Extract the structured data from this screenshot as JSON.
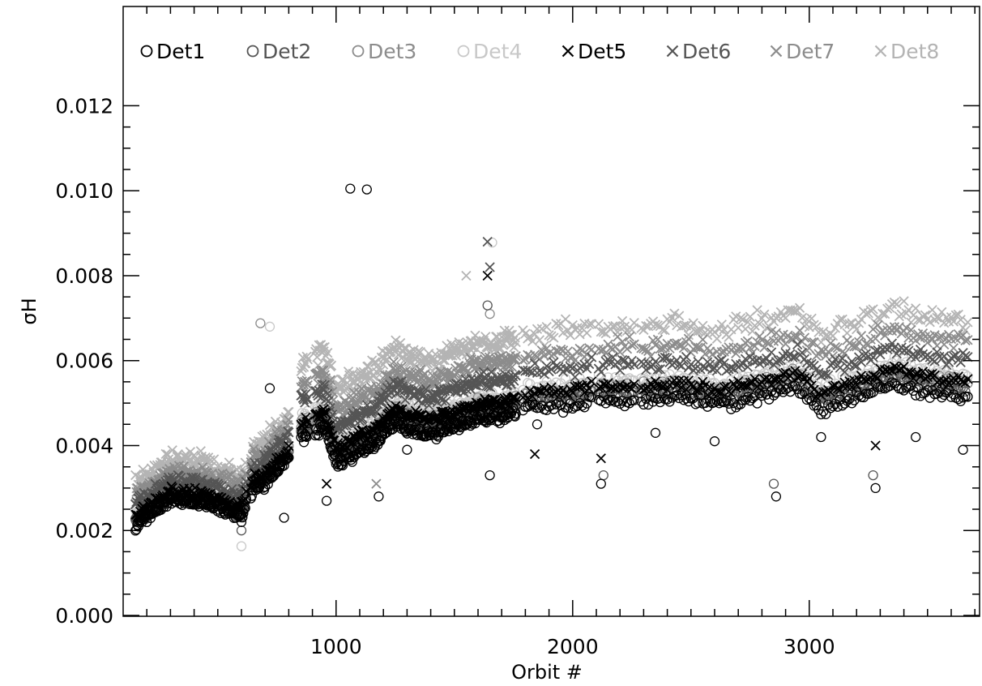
{
  "chart_data": {
    "type": "scatter",
    "xlabel": "Orbit #",
    "ylabel": "σH",
    "xlim": [
      100,
      3800
    ],
    "ylim": [
      0.0,
      0.012
    ],
    "x_major_ticks": [
      1000,
      2000,
      3000
    ],
    "x_tick_labels": [
      "1000",
      "2000",
      "3000"
    ],
    "x_minor_step": 100,
    "y_major_ticks": [
      0.0,
      0.002,
      0.004,
      0.006,
      0.008,
      0.01,
      0.012
    ],
    "y_tick_labels": [
      "0.000",
      "0.002",
      "0.004",
      "0.006",
      "0.008",
      "0.010",
      "0.012"
    ],
    "y_minor_step": 0.0005,
    "grid": false,
    "legend_position": "top",
    "series": [
      {
        "name": "Det1",
        "marker": "circle",
        "color": "#000000",
        "offset": 0.0,
        "bias": -0.25,
        "amp": 0.7,
        "points": [
          [
            200,
            0.0022
          ],
          [
            350,
            0.0026
          ],
          [
            600,
            0.0022
          ],
          [
            780,
            0.0023
          ],
          [
            960,
            0.0027
          ],
          [
            1180,
            0.0028
          ],
          [
            1300,
            0.0039
          ],
          [
            1500,
            0.0044
          ],
          [
            1650,
            0.0033
          ],
          [
            1850,
            0.0045
          ],
          [
            2120,
            0.0031
          ],
          [
            2350,
            0.0043
          ],
          [
            2600,
            0.0041
          ],
          [
            2860,
            0.0028
          ],
          [
            3050,
            0.0042
          ],
          [
            3280,
            0.003
          ],
          [
            3450,
            0.0042
          ],
          [
            3650,
            0.0039
          ],
          [
            1060,
            0.01005
          ],
          [
            1130,
            0.01003
          ],
          [
            720,
            0.00535
          ]
        ]
      },
      {
        "name": "Det2",
        "marker": "circle",
        "color": "#555555",
        "offset": 0.0001,
        "bias": -0.15,
        "amp": 0.75,
        "points": [
          [
            600,
            0.002
          ],
          [
            1640,
            0.0073
          ],
          [
            2130,
            0.0033
          ],
          [
            2850,
            0.0031
          ],
          [
            3270,
            0.0033
          ]
        ]
      },
      {
        "name": "Det3",
        "marker": "circle",
        "color": "#8c8c8c",
        "offset": 0.0002,
        "bias": -0.05,
        "amp": 0.8,
        "points": [
          [
            680,
            0.00688
          ],
          [
            1650,
            0.0071
          ]
        ]
      },
      {
        "name": "Det4",
        "marker": "circle",
        "color": "#c8c8c8",
        "offset": 0.0003,
        "bias": 0.05,
        "amp": 0.85,
        "points": [
          [
            720,
            0.0068
          ],
          [
            1660,
            0.00878
          ],
          [
            600,
            0.00163
          ]
        ]
      },
      {
        "name": "Det5",
        "marker": "x",
        "color": "#000000",
        "offset": 0.0002,
        "bias": 0.0,
        "amp": 0.7,
        "points": [
          [
            960,
            0.0031
          ],
          [
            1640,
            0.008
          ],
          [
            1840,
            0.0038
          ],
          [
            2120,
            0.0037
          ],
          [
            3280,
            0.004
          ]
        ]
      },
      {
        "name": "Det6",
        "marker": "x",
        "color": "#555555",
        "offset": 0.0006,
        "bias": 0.2,
        "amp": 0.9,
        "points": [
          [
            1640,
            0.0088
          ],
          [
            1650,
            0.0082
          ]
        ]
      },
      {
        "name": "Det7",
        "marker": "x",
        "color": "#8c8c8c",
        "offset": 0.0009,
        "bias": 0.35,
        "amp": 1.1,
        "points": [
          [
            1170,
            0.0031
          ]
        ]
      },
      {
        "name": "Det8",
        "marker": "x",
        "color": "#b4b4b4",
        "offset": 0.0013,
        "bias": 0.5,
        "amp": 1.3,
        "points": [
          [
            1550,
            0.008
          ]
        ]
      }
    ],
    "trend": [
      [
        150,
        0.0022
      ],
      [
        300,
        0.0028
      ],
      [
        450,
        0.0027
      ],
      [
        600,
        0.0024
      ],
      [
        650,
        0.0031
      ],
      [
        700,
        0.0032
      ],
      [
        780,
        0.0037
      ],
      [
        850,
        0.0043
      ],
      [
        950,
        0.0046
      ],
      [
        1000,
        0.0037
      ],
      [
        1100,
        0.004
      ],
      [
        1170,
        0.0042
      ],
      [
        1250,
        0.0047
      ],
      [
        1320,
        0.0045
      ],
      [
        1400,
        0.0044
      ],
      [
        1500,
        0.0046
      ],
      [
        1600,
        0.0048
      ],
      [
        1700,
        0.0048
      ],
      [
        1800,
        0.005
      ],
      [
        2000,
        0.0051
      ],
      [
        2100,
        0.0052
      ],
      [
        2300,
        0.0052
      ],
      [
        2450,
        0.0053
      ],
      [
        2600,
        0.0051
      ],
      [
        2800,
        0.0053
      ],
      [
        2950,
        0.0055
      ],
      [
        3050,
        0.005
      ],
      [
        3200,
        0.0053
      ],
      [
        3350,
        0.0056
      ],
      [
        3500,
        0.0054
      ],
      [
        3650,
        0.0053
      ]
    ],
    "gaps": [
      [
        620,
        640
      ],
      [
        800,
        850
      ],
      [
        880,
        910
      ],
      [
        1760,
        1790
      ],
      [
        2080,
        2110
      ],
      [
        2260,
        2290
      ]
    ]
  }
}
